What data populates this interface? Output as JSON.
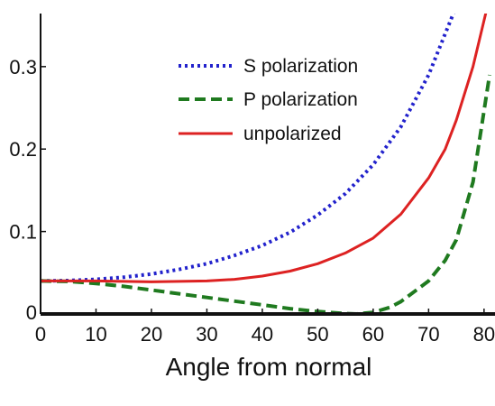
{
  "chart_data": {
    "type": "line",
    "title": "",
    "xlabel": "Angle from normal",
    "ylabel": "",
    "xlim": [
      0,
      81
    ],
    "ylim": [
      0,
      0.36
    ],
    "xticks": [
      "0",
      "10",
      "20",
      "30",
      "40",
      "50",
      "60",
      "70",
      "80"
    ],
    "yticks": [
      "0",
      "0.1",
      "0.2",
      "0.3"
    ],
    "grid": false,
    "legend_position": "top-center",
    "series": [
      {
        "name": "S polarization",
        "color": "#2222cc",
        "style": "dotted",
        "x": [
          0,
          5,
          10,
          15,
          20,
          25,
          30,
          35,
          40,
          45,
          50,
          55,
          60,
          65,
          70,
          73,
          76
        ],
        "y": [
          0.04,
          0.0405,
          0.042,
          0.0445,
          0.0485,
          0.054,
          0.061,
          0.071,
          0.083,
          0.099,
          0.12,
          0.146,
          0.181,
          0.227,
          0.29,
          0.34,
          0.39
        ]
      },
      {
        "name": "P polarization",
        "color": "#1f7a1f",
        "style": "dashed",
        "x": [
          0,
          5,
          10,
          15,
          20,
          25,
          30,
          35,
          40,
          45,
          50,
          55,
          57,
          60,
          63,
          65,
          70,
          73,
          75,
          78,
          81
        ],
        "y": [
          0.04,
          0.0395,
          0.037,
          0.0335,
          0.029,
          0.0245,
          0.02,
          0.0155,
          0.011,
          0.0065,
          0.003,
          0.0005,
          0,
          0.002,
          0.008,
          0.015,
          0.04,
          0.065,
          0.09,
          0.16,
          0.29
        ]
      },
      {
        "name": "unpolarized",
        "color": "#dd2222",
        "style": "solid",
        "x": [
          0,
          5,
          10,
          15,
          20,
          25,
          30,
          35,
          40,
          45,
          50,
          55,
          60,
          65,
          70,
          73,
          75,
          78,
          80.5
        ],
        "y": [
          0.04,
          0.04,
          0.04,
          0.0395,
          0.039,
          0.0395,
          0.04,
          0.042,
          0.046,
          0.052,
          0.061,
          0.074,
          0.092,
          0.121,
          0.165,
          0.2,
          0.235,
          0.3,
          0.37
        ]
      }
    ]
  }
}
